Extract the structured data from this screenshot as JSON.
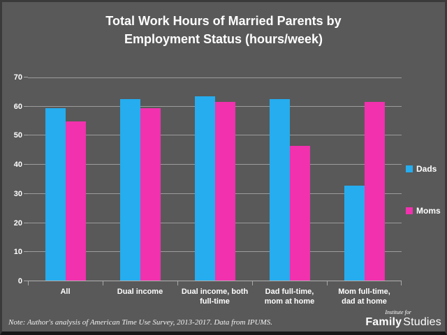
{
  "title": "Total Work Hours of Married Parents by\nEmployment Status (hours/week)",
  "chart_data": {
    "type": "bar",
    "title": "Total Work Hours of Married Parents by Employment Status (hours/week)",
    "categories": [
      "All",
      "Dual income",
      "Dual income, both\nfull-time",
      "Dad full-time,\nmom at home",
      "Mom full-time,\ndad at home"
    ],
    "series": [
      {
        "name": "Dads",
        "color": "#25ADEF",
        "values": [
          59.3,
          62.3,
          63.3,
          62.3,
          32.7
        ]
      },
      {
        "name": "Moms",
        "color": "#F231AE",
        "values": [
          54.7,
          59.2,
          61.3,
          46.3,
          61.3
        ]
      }
    ],
    "xlabel": "",
    "ylabel": "",
    "ylim": [
      0,
      70
    ],
    "ytick_step": 10,
    "ytick_labels": [
      "0",
      "10",
      "20",
      "30",
      "40",
      "50",
      "60",
      "70"
    ],
    "grid": true,
    "legend_position": "right"
  },
  "note": "Note: Author's analysis of American Time Use Survey, 2013-2017. Data from IPUMS.",
  "logo": {
    "line1": "Institute for",
    "line2_bold": "Family",
    "line2_regular": "Studies"
  },
  "colors": {
    "background": "#595959",
    "grid": "#9C9C9C",
    "axis": "#B0B0B0",
    "text": "#FFFFFF",
    "border": "#3A3A3A"
  }
}
